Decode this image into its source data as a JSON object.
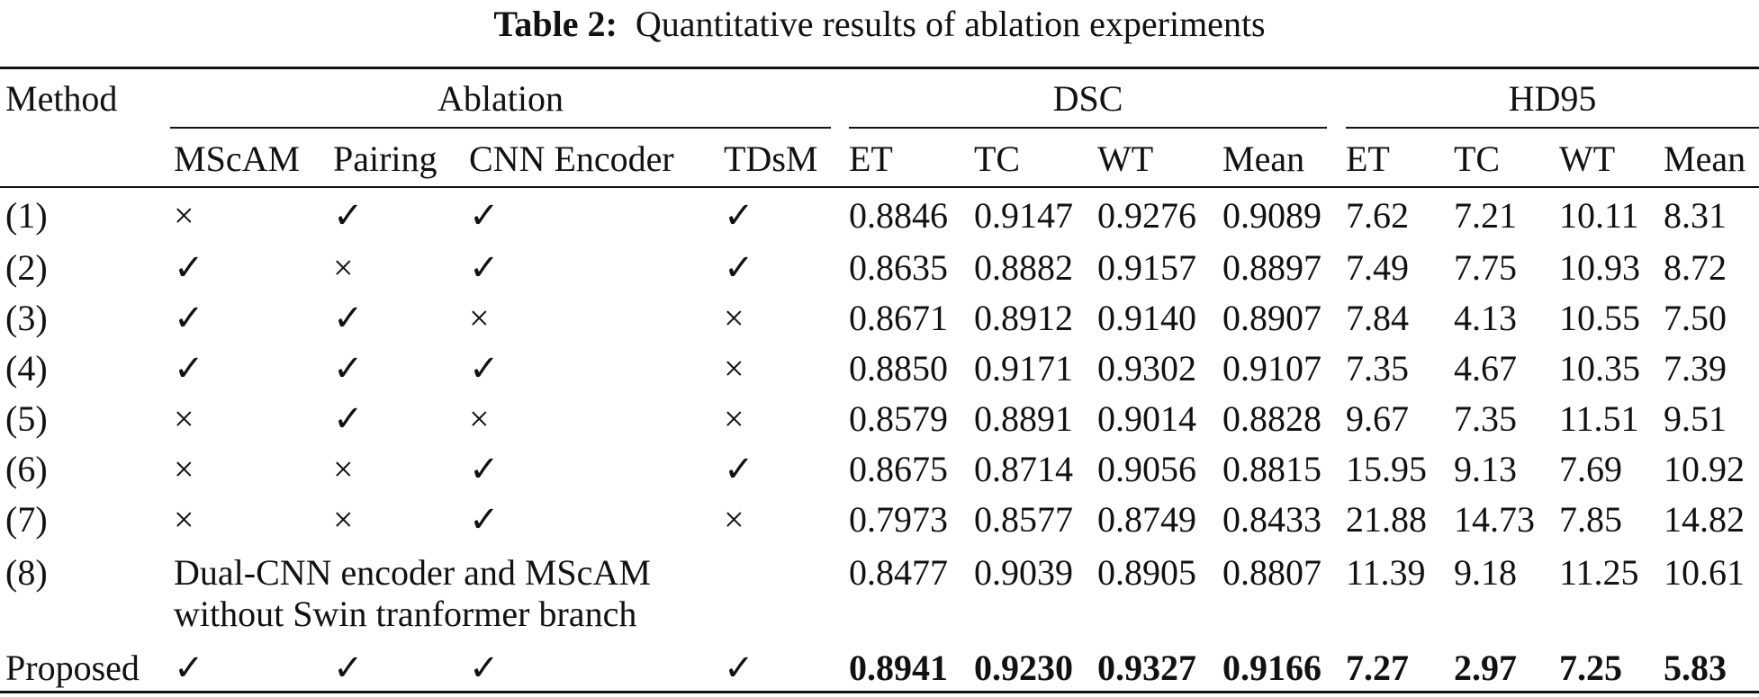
{
  "table": {
    "label": "Table 2:",
    "caption": "Quantitative results of ablation experiments",
    "group_headers": [
      "Method",
      "Ablation",
      "DSC",
      "HD95"
    ],
    "columns": [
      "MScAM",
      "Pairing",
      "CNN Encoder",
      "TDsM",
      "ET",
      "TC",
      "WT",
      "Mean",
      "ET",
      "TC",
      "WT",
      "Mean"
    ],
    "rows": [
      [
        "(1)",
        "×",
        "✓",
        "✓",
        "✓",
        "0.8846",
        "0.9147",
        "0.9276",
        "0.9089",
        "7.62",
        "7.21",
        "10.11",
        "8.31"
      ],
      [
        "(2)",
        "✓",
        "×",
        "✓",
        "✓",
        "0.8635",
        "0.8882",
        "0.9157",
        "0.8897",
        "7.49",
        "7.75",
        "10.93",
        "8.72"
      ],
      [
        "(3)",
        "✓",
        "✓",
        "×",
        "×",
        "0.8671",
        "0.8912",
        "0.9140",
        "0.8907",
        "7.84",
        "4.13",
        "10.55",
        "7.50"
      ],
      [
        "(4)",
        "✓",
        "✓",
        "✓",
        "×",
        "0.8850",
        "0.9171",
        "0.9302",
        "0.9107",
        "7.35",
        "4.67",
        "10.35",
        "7.39"
      ],
      [
        "(5)",
        "×",
        "✓",
        "×",
        "×",
        "0.8579",
        "0.8891",
        "0.9014",
        "0.8828",
        "9.67",
        "7.35",
        "11.51",
        "9.51"
      ],
      [
        "(6)",
        "×",
        "×",
        "✓",
        "✓",
        "0.8675",
        "0.8714",
        "0.9056",
        "0.8815",
        "15.95",
        "9.13",
        "7.69",
        "10.92"
      ],
      [
        "(7)",
        "×",
        "×",
        "✓",
        "×",
        "0.7973",
        "0.8577",
        "0.8749",
        "0.8433",
        "21.88",
        "14.73",
        "7.85",
        "14.82"
      ],
      [
        "(8)",
        "Dual-CNN encoder and MScAM without Swin tranformer branch",
        "0.8477",
        "0.9039",
        "0.8905",
        "0.8807",
        "11.39",
        "9.18",
        "11.25",
        "10.61"
      ],
      [
        "Proposed",
        "✓",
        "✓",
        "✓",
        "✓",
        "0.8941",
        "0.9230",
        "0.9327",
        "0.9166",
        "7.27",
        "2.97",
        "7.25",
        "5.83"
      ]
    ]
  }
}
